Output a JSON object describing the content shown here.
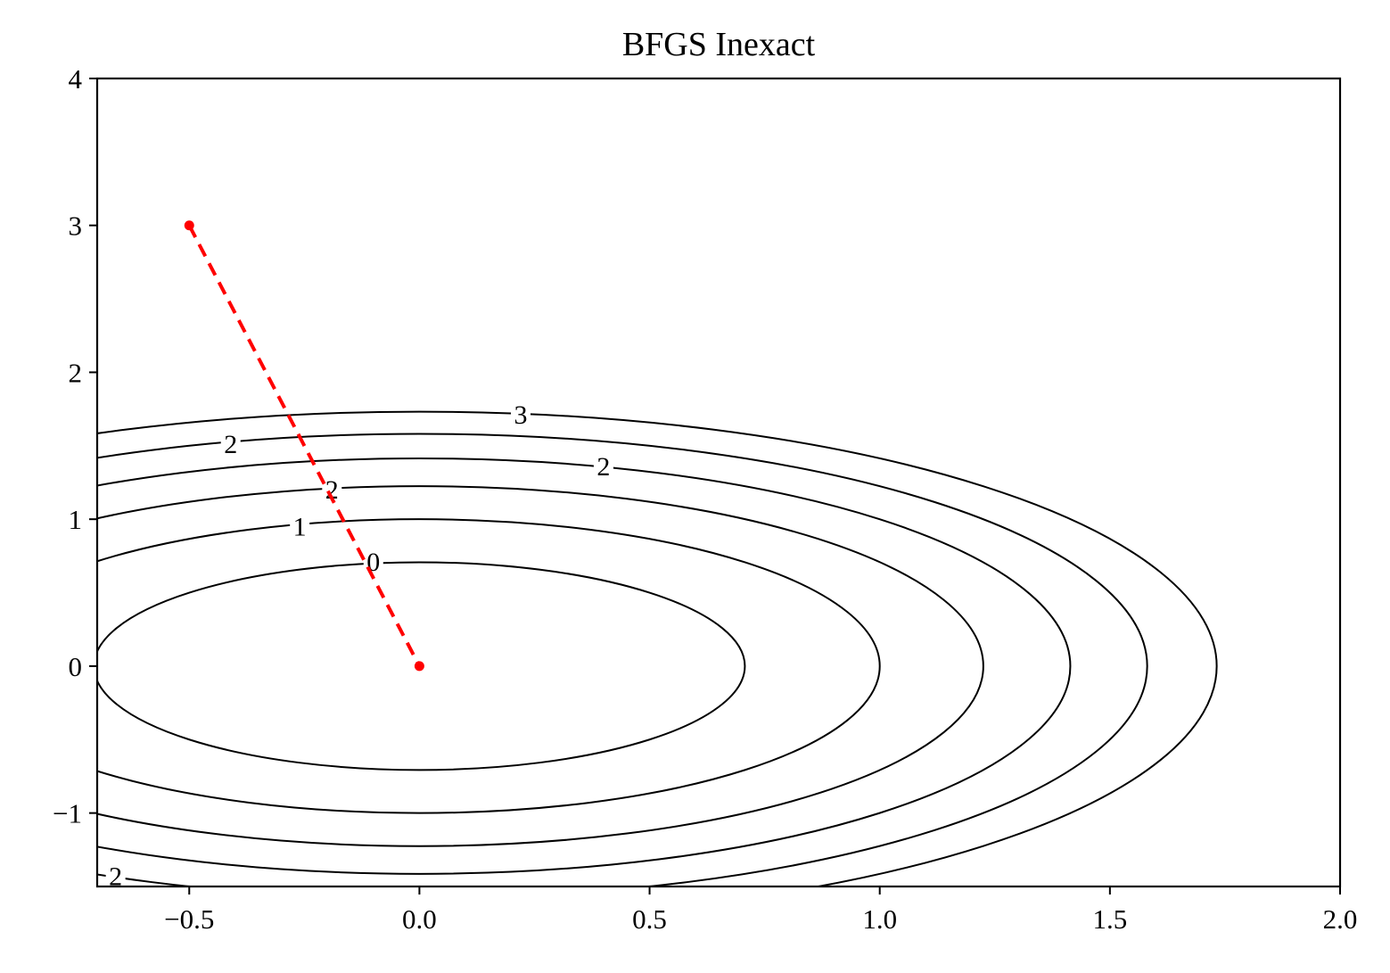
{
  "chart_data": {
    "type": "contour",
    "title": "BFGS Inexact",
    "xlabel": "",
    "ylabel": "",
    "xlim": [
      -0.7,
      2.0
    ],
    "ylim": [
      -1.5,
      4.0
    ],
    "xticks": [
      -0.5,
      0.0,
      0.5,
      1.0,
      1.5,
      2.0
    ],
    "xtick_labels": [
      "−0.5",
      "0.0",
      "0.5",
      "1.0",
      "1.5",
      "2.0"
    ],
    "yticks": [
      -1,
      0,
      1,
      2,
      3,
      4
    ],
    "ytick_labels": [
      "−1",
      "0",
      "1",
      "2",
      "3",
      "4"
    ],
    "grid": false,
    "contours": [
      {
        "a": 0.707,
        "b": 0.707
      },
      {
        "a": 1.0,
        "b": 1.0
      },
      {
        "a": 1.225,
        "b": 1.225
      },
      {
        "a": 1.414,
        "b": 1.414
      },
      {
        "a": 1.581,
        "b": 1.581
      },
      {
        "a": 1.732,
        "b": 1.732
      }
    ],
    "contour_labels": [
      {
        "text": "3",
        "x": 0.22,
        "y": 1.71
      },
      {
        "text": "2",
        "x": -0.41,
        "y": 1.51
      },
      {
        "text": "2",
        "x": 0.4,
        "y": 1.36
      },
      {
        "text": "2",
        "x": -0.19,
        "y": 1.2
      },
      {
        "text": "1",
        "x": -0.26,
        "y": 0.95
      },
      {
        "text": "0",
        "x": -0.1,
        "y": 0.71
      },
      {
        "text": "2",
        "x": -0.66,
        "y": -1.43
      }
    ],
    "path": {
      "color": "#ff0000",
      "points": [
        [
          -0.5,
          3.0
        ],
        [
          0.0,
          0.0
        ]
      ]
    }
  }
}
